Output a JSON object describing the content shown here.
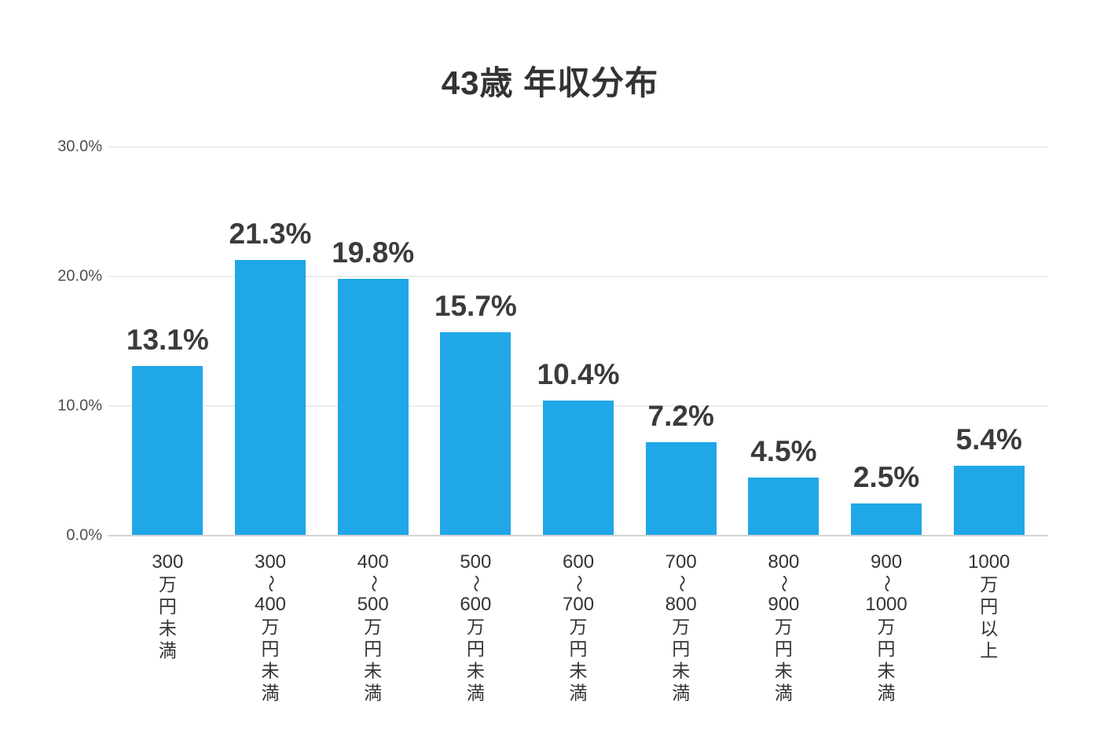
{
  "title_color": "#333333",
  "chart_data": {
    "type": "bar",
    "title": "43歳 年収分布",
    "categories": [
      "300万円未満",
      "300〜400万円未満",
      "400〜500万円未満",
      "500〜600万円未満",
      "600〜700万円未満",
      "700〜800万円未満",
      "800〜900万円未満",
      "900〜1000万円未満",
      "1000万円以上"
    ],
    "category_segments": [
      [
        "300",
        "万円未満"
      ],
      [
        "300",
        "〜",
        "400",
        "万円未満"
      ],
      [
        "400",
        "〜",
        "500",
        "万円未満"
      ],
      [
        "500",
        "〜",
        "600",
        "万円未満"
      ],
      [
        "600",
        "〜",
        "700",
        "万円未満"
      ],
      [
        "700",
        "〜",
        "800",
        "万円未満"
      ],
      [
        "800",
        "〜",
        "900",
        "万円未満"
      ],
      [
        "900",
        "〜",
        "1000",
        "万円未満"
      ],
      [
        "1000",
        "万円以上"
      ]
    ],
    "values": [
      13.1,
      21.3,
      19.8,
      15.7,
      10.4,
      7.2,
      4.5,
      2.5,
      5.4
    ],
    "value_labels": [
      "13.1%",
      "21.3%",
      "19.8%",
      "15.7%",
      "10.4%",
      "7.2%",
      "4.5%",
      "2.5%",
      "5.4%"
    ],
    "yticks": [
      {
        "value": 0,
        "label": "0.0%"
      },
      {
        "value": 10,
        "label": "10.0%"
      },
      {
        "value": 20,
        "label": "20.0%"
      },
      {
        "value": 30,
        "label": "30.0%"
      }
    ],
    "ylim": [
      0,
      30
    ],
    "grid": true,
    "legend": "none",
    "xlabel": "",
    "ylabel": "",
    "bar_color": "#1fa7e8",
    "gridline_color": "#d8d8d8",
    "baseline_color": "#d4d4d4",
    "label_color": "#3b3b3b",
    "axis_text_color": "#4d4d4d",
    "category_text_color": "#333333"
  }
}
